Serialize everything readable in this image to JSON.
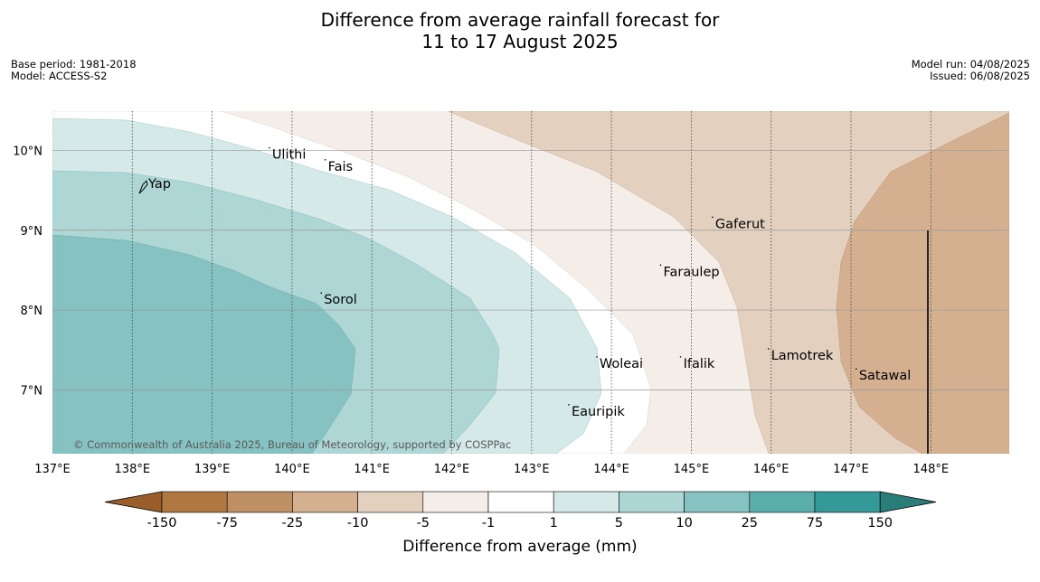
{
  "title": {
    "line1": "Difference from average rainfall forecast for",
    "line2": "11 to 17 August 2025"
  },
  "meta_left": {
    "base_period": "Base period: 1981-2018",
    "model": "Model: ACCESS-S2"
  },
  "meta_right": {
    "model_run": "Model run: 04/08/2025",
    "issued": "Issued: 06/08/2025"
  },
  "map": {
    "lon_range": [
      137.0,
      149.0
    ],
    "lat_range": [
      6.2,
      10.5
    ],
    "lon_ticks": [
      "137°E",
      "138°E",
      "139°E",
      "140°E",
      "141°E",
      "142°E",
      "143°E",
      "144°E",
      "145°E",
      "146°E",
      "147°E",
      "148°E"
    ],
    "lat_ticks": [
      "10°N",
      "9°N",
      "8°N",
      "7°N"
    ],
    "places": [
      {
        "name": "Ulithi",
        "lon": 139.75,
        "lat": 9.92
      },
      {
        "name": "Fais",
        "lon": 140.45,
        "lat": 9.77
      },
      {
        "name": "Yap",
        "lon": 138.2,
        "lat": 9.55
      },
      {
        "name": "Gaferut",
        "lon": 145.3,
        "lat": 9.05
      },
      {
        "name": "Faraulep",
        "lon": 144.65,
        "lat": 8.45
      },
      {
        "name": "Sorol",
        "lon": 140.4,
        "lat": 8.1
      },
      {
        "name": "Lamotrek",
        "lon": 146.0,
        "lat": 7.4
      },
      {
        "name": "Woleai",
        "lon": 143.85,
        "lat": 7.3
      },
      {
        "name": "Ifalik",
        "lon": 144.9,
        "lat": 7.3
      },
      {
        "name": "Satawal",
        "lon": 147.1,
        "lat": 7.15
      },
      {
        "name": "Eauripik",
        "lon": 143.5,
        "lat": 6.7
      }
    ],
    "copyright": "© Commonwealth of Australia 2025, Bureau of Meteorology, supported by COSPPac"
  },
  "colorbar": {
    "title": "Difference from average (mm)",
    "labels": [
      "-150",
      "-75",
      "-25",
      "-10",
      "-5",
      "-1",
      "1",
      "5",
      "10",
      "25",
      "75",
      "150"
    ],
    "colors": [
      "#b07840",
      "#c09065",
      "#d4b090",
      "#e3d0bf",
      "#f4ede8",
      "#ffffff",
      "#d5e9e8",
      "#aed6d5",
      "#85c2c1",
      "#5aaeab",
      "#349a98"
    ],
    "extend_low": "#9a5e2a",
    "extend_high": "#2b7d7a"
  }
}
